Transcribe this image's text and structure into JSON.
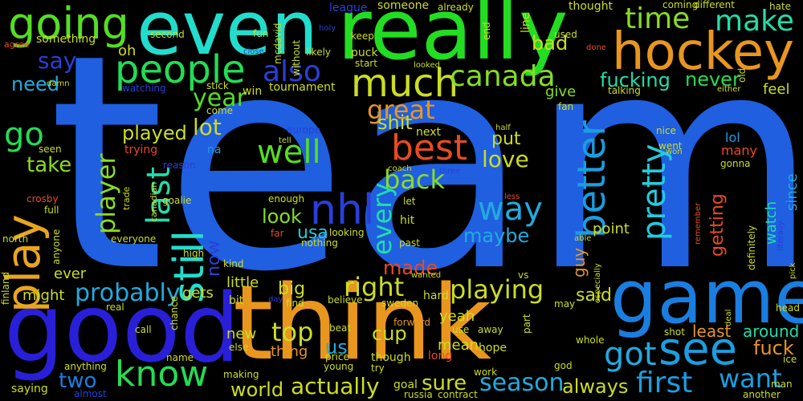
{
  "background": "#000000",
  "words": [
    {
      "text": "team",
      "color": "#1f5fe0"
    },
    {
      "text": "really",
      "color": "#22dd22"
    },
    {
      "text": "even",
      "color": "#22ddcc"
    },
    {
      "text": "good",
      "color": "#2a1fd8"
    },
    {
      "text": "think",
      "color": "#e8961e"
    },
    {
      "text": "game",
      "color": "#1a7ee0"
    },
    {
      "text": "hockey",
      "color": "#e8961e"
    },
    {
      "text": "people",
      "color": "#22dd55"
    },
    {
      "text": "going",
      "color": "#55dd22"
    },
    {
      "text": "time",
      "color": "#88dd22"
    },
    {
      "text": "make",
      "color": "#22ddaa"
    },
    {
      "text": "much",
      "color": "#ccdd22"
    },
    {
      "text": "also",
      "color": "#2a3fd8"
    },
    {
      "text": "canada",
      "color": "#88dd22"
    },
    {
      "text": "best",
      "color": "#e84a22"
    },
    {
      "text": "still",
      "color": "#22ddcc"
    },
    {
      "text": "nhl",
      "color": "#2a3fd8"
    },
    {
      "text": "better",
      "color": "#1a9ee0"
    },
    {
      "text": "pretty",
      "color": "#22ccdd"
    },
    {
      "text": "see",
      "color": "#1a9ee0"
    },
    {
      "text": "know",
      "color": "#22dd55"
    },
    {
      "text": "play",
      "color": "#e8a61e"
    },
    {
      "text": "year",
      "color": "#55dd22"
    },
    {
      "text": "say",
      "color": "#2a3fd8"
    },
    {
      "text": "need",
      "color": "#22aadd"
    },
    {
      "text": "go",
      "color": "#22dd55"
    },
    {
      "text": "take",
      "color": "#88dd22"
    },
    {
      "text": "well",
      "color": "#55dd22"
    },
    {
      "text": "last",
      "color": "#22ddaa"
    },
    {
      "text": "player",
      "color": "#88dd22"
    },
    {
      "text": "lot",
      "color": "#ccdd22"
    },
    {
      "text": "played",
      "color": "#ccdd22"
    },
    {
      "text": "way",
      "color": "#22aadd"
    },
    {
      "text": "back",
      "color": "#88dd22"
    },
    {
      "text": "look",
      "color": "#88dd22"
    },
    {
      "text": "usa",
      "color": "#22ccdd"
    },
    {
      "text": "every",
      "color": "#22ddaa"
    },
    {
      "text": "great",
      "color": "#e8961e"
    },
    {
      "text": "shit",
      "color": "#ccdd22"
    },
    {
      "text": "love",
      "color": "#ccdd22"
    },
    {
      "text": "put",
      "color": "#ccdd22"
    },
    {
      "text": "maybe",
      "color": "#22aadd"
    },
    {
      "text": "right",
      "color": "#ccdd22"
    },
    {
      "text": "playing",
      "color": "#ccdd22"
    },
    {
      "text": "probably",
      "color": "#22aadd"
    },
    {
      "text": "made",
      "color": "#e84a22"
    },
    {
      "text": "top",
      "color": "#ccdd22"
    },
    {
      "text": "got",
      "color": "#22aadd"
    },
    {
      "text": "first",
      "color": "#1a9ee0"
    },
    {
      "text": "want",
      "color": "#1a9ee0"
    },
    {
      "text": "two",
      "color": "#1a7ee0"
    },
    {
      "text": "season",
      "color": "#22aadd"
    },
    {
      "text": "sure",
      "color": "#ccdd22"
    },
    {
      "text": "actually",
      "color": "#ccdd22"
    },
    {
      "text": "world",
      "color": "#ccdd22"
    },
    {
      "text": "always",
      "color": "#ccdd22"
    },
    {
      "text": "cup",
      "color": "#ccdd22"
    },
    {
      "text": "us",
      "color": "#22aadd"
    },
    {
      "text": "fuck",
      "color": "#e8961e"
    },
    {
      "text": "fucking",
      "color": "#22ddaa"
    },
    {
      "text": "never",
      "color": "#22dd55"
    },
    {
      "text": "bad",
      "color": "#ccdd22"
    },
    {
      "text": "give",
      "color": "#88dd22"
    },
    {
      "text": "oh",
      "color": "#ccdd22"
    },
    {
      "text": "getting",
      "color": "#e84a22"
    },
    {
      "text": "now",
      "color": "#2a3fd8"
    },
    {
      "text": "said",
      "color": "#ccdd22"
    },
    {
      "text": "guy",
      "color": "#e8961e"
    },
    {
      "text": "point",
      "color": "#ccdd22"
    },
    {
      "text": "around",
      "color": "#22ddaa"
    },
    {
      "text": "least",
      "color": "#e8961e"
    },
    {
      "text": "yeah",
      "color": "#ccdd22"
    },
    {
      "text": "mean",
      "color": "#ccdd22"
    },
    {
      "text": "big",
      "color": "#ccdd22"
    },
    {
      "text": "little",
      "color": "#ccdd22"
    },
    {
      "text": "gets",
      "color": "#ccdd22"
    },
    {
      "text": "might",
      "color": "#ccdd22"
    },
    {
      "text": "ever",
      "color": "#ccdd22"
    },
    {
      "text": "new",
      "color": "#ccdd22"
    },
    {
      "text": "thing",
      "color": "#e8961e"
    },
    {
      "text": "hope",
      "color": "#ccdd22"
    },
    {
      "text": "feel",
      "color": "#ccdd22"
    },
    {
      "text": "lol",
      "color": "#1a9ee0"
    },
    {
      "text": "many",
      "color": "#e84a22"
    },
    {
      "text": "watch",
      "color": "#22ddaa"
    },
    {
      "text": "since",
      "color": "#22aadd"
    },
    {
      "text": "tournament",
      "color": "#ccdd22"
    },
    {
      "text": "something",
      "color": "#ccdd22"
    },
    {
      "text": "second",
      "color": "#ccdd22"
    },
    {
      "text": "league",
      "color": "#2a3fd8"
    },
    {
      "text": "someone",
      "color": "#ccdd22"
    },
    {
      "text": "already",
      "color": "#ccdd22"
    },
    {
      "text": "thought",
      "color": "#ccdd22"
    },
    {
      "text": "different",
      "color": "#ccdd22"
    },
    {
      "text": "hate",
      "color": "#ccdd22"
    },
    {
      "text": "keep",
      "color": "#ccdd22"
    },
    {
      "text": "puck",
      "color": "#ccdd22"
    },
    {
      "text": "used",
      "color": "#ccdd22"
    },
    {
      "text": "win",
      "color": "#ccdd22"
    },
    {
      "text": "come",
      "color": "#ccdd22"
    },
    {
      "text": "stick",
      "color": "#ccdd22"
    },
    {
      "text": "watching",
      "color": "#2a3fd8"
    },
    {
      "text": "fan",
      "color": "#ccdd22"
    },
    {
      "text": "talking",
      "color": "#ccdd22"
    },
    {
      "text": "next",
      "color": "#ccdd22"
    },
    {
      "text": "hit",
      "color": "#ccdd22"
    },
    {
      "text": "past",
      "color": "#ccdd22"
    },
    {
      "text": "let",
      "color": "#ccdd22"
    },
    {
      "text": "trying",
      "color": "#e84a22"
    },
    {
      "text": "na",
      "color": "#1a9ee0"
    },
    {
      "text": "reason",
      "color": "#2a3fd8"
    },
    {
      "text": "crosby",
      "color": "#e84a22"
    },
    {
      "text": "goalie",
      "color": "#ccdd22"
    },
    {
      "text": "everyone",
      "color": "#ccdd22"
    },
    {
      "text": "high",
      "color": "#ccdd22"
    },
    {
      "text": "kind",
      "color": "#ccdd22"
    },
    {
      "text": "enough",
      "color": "#ccdd22"
    },
    {
      "text": "looking",
      "color": "#ccdd22"
    },
    {
      "text": "nothing",
      "color": "#ccdd22"
    },
    {
      "text": "gonna",
      "color": "#ccdd22"
    },
    {
      "text": "went",
      "color": "#ccdd22"
    },
    {
      "text": "nice",
      "color": "#ccdd22"
    },
    {
      "text": "north",
      "color": "#ccdd22"
    },
    {
      "text": "anyone",
      "color": "#ccdd22"
    },
    {
      "text": "finland",
      "color": "#ccdd22"
    },
    {
      "text": "real",
      "color": "#ccdd22"
    },
    {
      "text": "saying",
      "color": "#ccdd22"
    },
    {
      "text": "anything",
      "color": "#ccdd22"
    },
    {
      "text": "making",
      "color": "#ccdd22"
    },
    {
      "text": "bit",
      "color": "#ccdd22"
    },
    {
      "text": "find",
      "color": "#ccdd22"
    },
    {
      "text": "believe",
      "color": "#ccdd22"
    },
    {
      "text": "hard",
      "color": "#ccdd22"
    },
    {
      "text": "sweden",
      "color": "#ccdd22"
    },
    {
      "text": "beat",
      "color": "#ccdd22"
    },
    {
      "text": "forward",
      "color": "#e8961e"
    },
    {
      "text": "use",
      "color": "#ccdd22"
    },
    {
      "text": "away",
      "color": "#ccdd22"
    },
    {
      "text": "whole",
      "color": "#ccdd22"
    },
    {
      "text": "shot",
      "color": "#ccdd22"
    },
    {
      "text": "ice",
      "color": "#ccdd22"
    },
    {
      "text": "man",
      "color": "#ccdd22"
    },
    {
      "text": "another",
      "color": "#ccdd22"
    },
    {
      "text": "head",
      "color": "#ccdd22"
    },
    {
      "text": "contract",
      "color": "#ccdd22"
    },
    {
      "text": "russia",
      "color": "#ccdd22"
    },
    {
      "text": "goal",
      "color": "#ccdd22"
    },
    {
      "text": "price",
      "color": "#ccdd22"
    },
    {
      "text": "long",
      "color": "#e84a22"
    },
    {
      "text": "young",
      "color": "#ccdd22"
    },
    {
      "text": "try",
      "color": "#ccdd22"
    },
    {
      "text": "though",
      "color": "#ccdd22"
    },
    {
      "text": "work",
      "color": "#ccdd22"
    },
    {
      "text": "god",
      "color": "#ccdd22"
    },
    {
      "text": "may",
      "color": "#ccdd22"
    },
    {
      "text": "part",
      "color": "#ccdd22"
    },
    {
      "text": "vs",
      "color": "#ccdd22"
    },
    {
      "text": "wanted",
      "color": "#ccdd22"
    },
    {
      "text": "day",
      "color": "#2a3fd8"
    },
    {
      "text": "else",
      "color": "#ccdd22"
    },
    {
      "text": "name",
      "color": "#ccdd22"
    },
    {
      "text": "call",
      "color": "#ccdd22"
    },
    {
      "text": "chance",
      "color": "#ccdd22"
    },
    {
      "text": "almost",
      "color": "#2a3fd8"
    },
    {
      "text": "full",
      "color": "#ccdd22"
    },
    {
      "text": "seen",
      "color": "#ccdd22"
    },
    {
      "text": "damn",
      "color": "#ccdd22"
    },
    {
      "text": "agree",
      "color": "#e84a22"
    },
    {
      "text": "fun",
      "color": "#ccdd22"
    },
    {
      "text": "close",
      "color": "#2a3fd8"
    },
    {
      "text": "mcdavid",
      "color": "#ccdd22"
    },
    {
      "text": "without",
      "color": "#ccdd22"
    },
    {
      "text": "holy",
      "color": "#2a3fd8"
    },
    {
      "text": "likely",
      "color": "#ccdd22"
    },
    {
      "text": "end",
      "color": "#ccdd22"
    },
    {
      "text": "line",
      "color": "#ccdd22"
    },
    {
      "text": "start",
      "color": "#ccdd22"
    },
    {
      "text": "looked",
      "color": "#ccdd22"
    },
    {
      "text": "done",
      "color": "#e84a22"
    },
    {
      "text": "coming",
      "color": "#ccdd22"
    },
    {
      "text": "old",
      "color": "#ccdd22"
    },
    {
      "text": "either",
      "color": "#ccdd22"
    },
    {
      "text": "half",
      "color": "#ccdd22"
    },
    {
      "text": "won",
      "color": "#ccdd22"
    },
    {
      "text": "coach",
      "color": "#ccdd22"
    },
    {
      "text": "three",
      "color": "#2a3fd8"
    },
    {
      "text": "tell",
      "color": "#ccdd22"
    },
    {
      "text": "europe",
      "color": "#2a3fd8"
    },
    {
      "text": "less",
      "color": "#e84a22"
    },
    {
      "text": "able",
      "color": "#ccdd22"
    },
    {
      "text": "especially",
      "color": "#ccdd22"
    },
    {
      "text": "remember",
      "color": "#e84a22"
    },
    {
      "text": "definitely",
      "color": "#ccdd22"
    },
    {
      "text": "literally",
      "color": "#2a3fd8"
    },
    {
      "text": "pick",
      "color": "#ccdd22"
    },
    {
      "text": "deal",
      "color": "#ccdd22"
    },
    {
      "text": "trade",
      "color": "#ccdd22"
    },
    {
      "text": "canadian",
      "color": "#ccdd22"
    },
    {
      "text": "far",
      "color": "#e84a22"
    }
  ]
}
